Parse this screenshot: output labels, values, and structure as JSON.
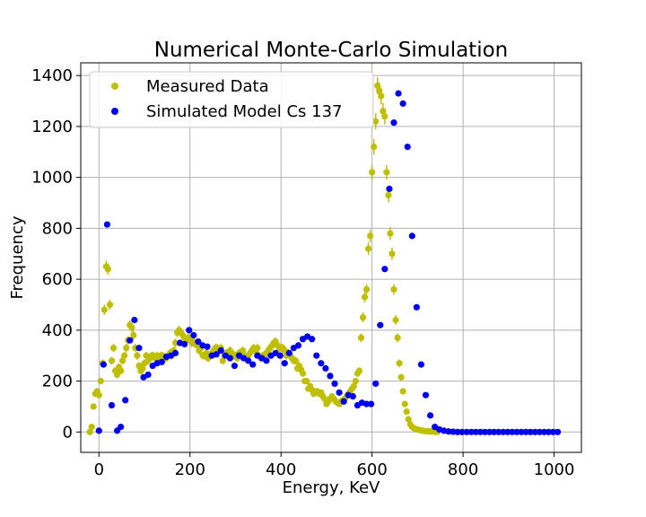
{
  "chart_data": {
    "type": "scatter",
    "title": "Numerical Monte-Carlo Simulation",
    "xlabel": "Energy, KeV",
    "ylabel": "Frequency",
    "xlim": [
      -40,
      1060
    ],
    "ylim": [
      -80,
      1450
    ],
    "xticks": [
      0,
      200,
      400,
      600,
      800,
      1000
    ],
    "yticks": [
      0,
      200,
      400,
      600,
      800,
      1000,
      1200,
      1400
    ],
    "grid": true,
    "legend_position": "top-left",
    "series": [
      {
        "name": "Measured Data",
        "color": "#bfbf00",
        "error_bars": true,
        "points": [
          [
            -20,
            0
          ],
          [
            -16,
            20
          ],
          [
            -12,
            100
          ],
          [
            -8,
            150
          ],
          [
            -4,
            160
          ],
          [
            0,
            145
          ],
          [
            4,
            200
          ],
          [
            8,
            270
          ],
          [
            12,
            480
          ],
          [
            16,
            650
          ],
          [
            20,
            640
          ],
          [
            24,
            500
          ],
          [
            28,
            280
          ],
          [
            32,
            330
          ],
          [
            36,
            240
          ],
          [
            40,
            225
          ],
          [
            44,
            255
          ],
          [
            48,
            240
          ],
          [
            52,
            280
          ],
          [
            56,
            300
          ],
          [
            60,
            330
          ],
          [
            64,
            360
          ],
          [
            68,
            420
          ],
          [
            72,
            410
          ],
          [
            76,
            380
          ],
          [
            80,
            330
          ],
          [
            84,
            300
          ],
          [
            88,
            260
          ],
          [
            92,
            240
          ],
          [
            96,
            250
          ],
          [
            100,
            270
          ],
          [
            104,
            300
          ],
          [
            108,
            280
          ],
          [
            112,
            290
          ],
          [
            116,
            300
          ],
          [
            120,
            300
          ],
          [
            124,
            290
          ],
          [
            128,
            300
          ],
          [
            132,
            285
          ],
          [
            136,
            300
          ],
          [
            140,
            300
          ],
          [
            144,
            295
          ],
          [
            148,
            290
          ],
          [
            152,
            300
          ],
          [
            156,
            310
          ],
          [
            160,
            300
          ],
          [
            164,
            320
          ],
          [
            168,
            350
          ],
          [
            172,
            390
          ],
          [
            176,
            400
          ],
          [
            180,
            390
          ],
          [
            184,
            380
          ],
          [
            188,
            370
          ],
          [
            192,
            360
          ],
          [
            196,
            370
          ],
          [
            200,
            360
          ],
          [
            204,
            350
          ],
          [
            208,
            355
          ],
          [
            212,
            345
          ],
          [
            216,
            340
          ],
          [
            220,
            320
          ],
          [
            224,
            330
          ],
          [
            228,
            300
          ],
          [
            232,
            300
          ],
          [
            236,
            310
          ],
          [
            240,
            290
          ],
          [
            244,
            300
          ],
          [
            248,
            310
          ],
          [
            252,
            320
          ],
          [
            256,
            330
          ],
          [
            260,
            330
          ],
          [
            264,
            320
          ],
          [
            268,
            330
          ],
          [
            272,
            280
          ],
          [
            276,
            300
          ],
          [
            280,
            310
          ],
          [
            284,
            300
          ],
          [
            288,
            320
          ],
          [
            292,
            310
          ],
          [
            296,
            300
          ],
          [
            300,
            300
          ],
          [
            304,
            290
          ],
          [
            308,
            310
          ],
          [
            312,
            300
          ],
          [
            316,
            320
          ],
          [
            320,
            300
          ],
          [
            324,
            290
          ],
          [
            328,
            300
          ],
          [
            332,
            310
          ],
          [
            336,
            320
          ],
          [
            340,
            330
          ],
          [
            344,
            320
          ],
          [
            348,
            330
          ],
          [
            352,
            300
          ],
          [
            356,
            290
          ],
          [
            360,
            300
          ],
          [
            364,
            300
          ],
          [
            368,
            310
          ],
          [
            372,
            320
          ],
          [
            376,
            330
          ],
          [
            380,
            340
          ],
          [
            384,
            350
          ],
          [
            388,
            355
          ],
          [
            392,
            340
          ],
          [
            396,
            330
          ],
          [
            400,
            330
          ],
          [
            404,
            330
          ],
          [
            408,
            320
          ],
          [
            412,
            300
          ],
          [
            416,
            310
          ],
          [
            420,
            300
          ],
          [
            424,
            290
          ],
          [
            428,
            280
          ],
          [
            432,
            280
          ],
          [
            436,
            250
          ],
          [
            440,
            260
          ],
          [
            444,
            245
          ],
          [
            448,
            230
          ],
          [
            452,
            200
          ],
          [
            456,
            200
          ],
          [
            460,
            170
          ],
          [
            464,
            180
          ],
          [
            468,
            165
          ],
          [
            472,
            150
          ],
          [
            476,
            160
          ],
          [
            480,
            160
          ],
          [
            484,
            150
          ],
          [
            488,
            155
          ],
          [
            492,
            140
          ],
          [
            496,
            130
          ],
          [
            500,
            110
          ],
          [
            504,
            120
          ],
          [
            508,
            130
          ],
          [
            512,
            140
          ],
          [
            516,
            130
          ],
          [
            520,
            120
          ],
          [
            524,
            115
          ],
          [
            528,
            110
          ],
          [
            532,
            120
          ],
          [
            536,
            125
          ],
          [
            540,
            130
          ],
          [
            544,
            140
          ],
          [
            548,
            150
          ],
          [
            552,
            160
          ],
          [
            556,
            170
          ],
          [
            560,
            180
          ],
          [
            564,
            200
          ],
          [
            568,
            230
          ],
          [
            572,
            240
          ],
          [
            576,
            370
          ],
          [
            580,
            450
          ],
          [
            584,
            530
          ],
          [
            588,
            560
          ],
          [
            592,
            720
          ],
          [
            596,
            770
          ],
          [
            600,
            1020
          ],
          [
            604,
            1120
          ],
          [
            608,
            1220
          ],
          [
            612,
            1360
          ],
          [
            616,
            1340
          ],
          [
            620,
            1320
          ],
          [
            624,
            1260
          ],
          [
            628,
            1240
          ],
          [
            632,
            1020
          ],
          [
            636,
            930
          ],
          [
            640,
            780
          ],
          [
            644,
            700
          ],
          [
            648,
            560
          ],
          [
            652,
            440
          ],
          [
            656,
            370
          ],
          [
            660,
            270
          ],
          [
            664,
            215
          ],
          [
            668,
            160
          ],
          [
            672,
            110
          ],
          [
            676,
            80
          ],
          [
            680,
            50
          ],
          [
            684,
            30
          ],
          [
            688,
            20
          ],
          [
            692,
            15
          ],
          [
            696,
            12
          ],
          [
            700,
            10
          ],
          [
            704,
            8
          ],
          [
            708,
            6
          ],
          [
            712,
            5
          ],
          [
            716,
            4
          ],
          [
            720,
            3
          ],
          [
            724,
            3
          ],
          [
            728,
            2
          ],
          [
            732,
            2
          ],
          [
            736,
            2
          ],
          [
            740,
            1
          ],
          [
            744,
            1
          ]
        ]
      },
      {
        "name": "Simulated Model Cs 137",
        "color": "#0000ee",
        "error_bars": false,
        "points": [
          [
            0,
            5
          ],
          [
            10,
            265
          ],
          [
            18,
            815
          ],
          [
            28,
            105
          ],
          [
            40,
            5
          ],
          [
            48,
            20
          ],
          [
            58,
            125
          ],
          [
            68,
            360
          ],
          [
            78,
            440
          ],
          [
            88,
            330
          ],
          [
            98,
            215
          ],
          [
            108,
            225
          ],
          [
            118,
            260
          ],
          [
            128,
            270
          ],
          [
            138,
            275
          ],
          [
            148,
            295
          ],
          [
            158,
            300
          ],
          [
            168,
            310
          ],
          [
            178,
            350
          ],
          [
            188,
            345
          ],
          [
            198,
            400
          ],
          [
            208,
            380
          ],
          [
            218,
            355
          ],
          [
            228,
            340
          ],
          [
            238,
            335
          ],
          [
            248,
            300
          ],
          [
            258,
            305
          ],
          [
            268,
            320
          ],
          [
            278,
            300
          ],
          [
            288,
            290
          ],
          [
            298,
            260
          ],
          [
            308,
            300
          ],
          [
            318,
            290
          ],
          [
            328,
            280
          ],
          [
            338,
            265
          ],
          [
            348,
            300
          ],
          [
            358,
            290
          ],
          [
            368,
            280
          ],
          [
            378,
            300
          ],
          [
            388,
            310
          ],
          [
            398,
            300
          ],
          [
            408,
            270
          ],
          [
            418,
            310
          ],
          [
            428,
            330
          ],
          [
            438,
            340
          ],
          [
            448,
            365
          ],
          [
            458,
            375
          ],
          [
            468,
            365
          ],
          [
            478,
            300
          ],
          [
            488,
            270
          ],
          [
            498,
            250
          ],
          [
            508,
            220
          ],
          [
            518,
            190
          ],
          [
            528,
            155
          ],
          [
            538,
            120
          ],
          [
            548,
            145
          ],
          [
            558,
            140
          ],
          [
            568,
            105
          ],
          [
            578,
            115
          ],
          [
            588,
            110
          ],
          [
            598,
            110
          ],
          [
            608,
            190
          ],
          [
            618,
            420
          ],
          [
            628,
            640
          ],
          [
            638,
            955
          ],
          [
            648,
            1215
          ],
          [
            658,
            1330
          ],
          [
            668,
            1290
          ],
          [
            678,
            1120
          ],
          [
            688,
            770
          ],
          [
            698,
            490
          ],
          [
            708,
            265
          ],
          [
            718,
            145
          ],
          [
            728,
            65
          ],
          [
            738,
            20
          ],
          [
            748,
            10
          ],
          [
            758,
            5
          ],
          [
            768,
            2
          ],
          [
            778,
            1
          ],
          [
            788,
            0
          ],
          [
            798,
            0
          ],
          [
            808,
            0
          ],
          [
            818,
            0
          ],
          [
            828,
            0
          ],
          [
            838,
            0
          ],
          [
            848,
            0
          ],
          [
            858,
            0
          ],
          [
            868,
            0
          ],
          [
            878,
            0
          ],
          [
            888,
            0
          ],
          [
            898,
            0
          ],
          [
            908,
            0
          ],
          [
            918,
            0
          ],
          [
            928,
            0
          ],
          [
            938,
            0
          ],
          [
            948,
            0
          ],
          [
            958,
            0
          ],
          [
            968,
            0
          ],
          [
            978,
            0
          ],
          [
            988,
            0
          ],
          [
            998,
            0
          ],
          [
            1008,
            0
          ]
        ]
      }
    ]
  }
}
